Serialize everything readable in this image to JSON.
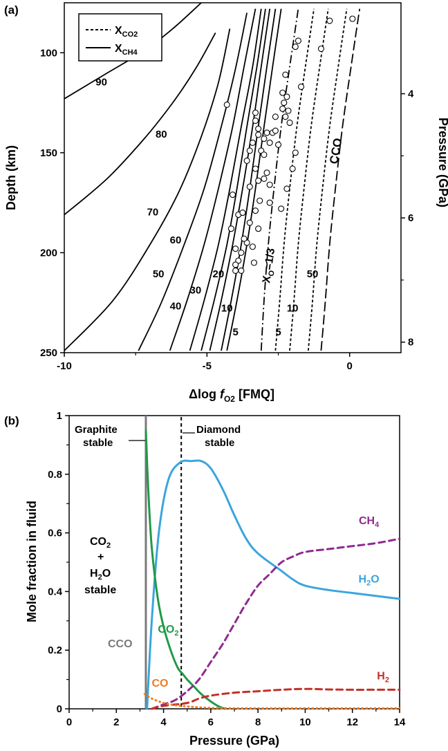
{
  "panel_a": {
    "label": "(a)",
    "xlabel_prefix": "Δlog ",
    "xlabel_f": "f",
    "xlabel_sub": "O2",
    "xlabel_suffix": " [FMQ]",
    "ylabel_left": "Depth (km)",
    "ylabel_right": "Pressure (GPa)",
    "legend": [
      {
        "text": "X",
        "sub": "CO2",
        "style": "dashed"
      },
      {
        "text": "X",
        "sub": "CH4",
        "style": "solid"
      }
    ],
    "xticks": [
      "-10",
      "-5",
      "0"
    ],
    "yticks_left": [
      "100",
      "150",
      "200",
      "250"
    ],
    "yticks_right": [
      "4",
      "6",
      "8"
    ],
    "xo_label": "X",
    "xo_sub": "O",
    "xo_suffix": "=1/3",
    "cco_label": "CCO"
  },
  "panel_b": {
    "label": "(b)",
    "xlabel": "Pressure (GPa)",
    "ylabel": "Mole fraction in fluid",
    "xticks": [
      "0",
      "2",
      "4",
      "6",
      "8",
      "10",
      "12",
      "14"
    ],
    "yticks": [
      "0",
      "0.2",
      "0.4",
      "0.6",
      "0.8",
      "1"
    ],
    "graphite_label_1": "Graphite",
    "graphite_label_2": "stable",
    "diamond_label_1": "Diamond",
    "diamond_label_2": "stable",
    "stable_co2": "CO",
    "stable_plus": "+",
    "stable_h2o": "H",
    "stable_h2o_b": "O",
    "stable_word": "stable",
    "cco_label": "CCO",
    "sub2": "2",
    "sub4": "4"
  },
  "chart_data": [
    {
      "type": "line",
      "panel": "a",
      "xlabel": "Δlog fO2 [FMQ]",
      "ylabel": "Depth (km)",
      "y2label": "Pressure (GPa)",
      "xlim": [
        -10,
        1.8
      ],
      "ylim": [
        250,
        75
      ],
      "y2_ticks": [
        4,
        6,
        8
      ],
      "legend": [
        "XCO2 (dashed)",
        "XCH4 (solid)"
      ],
      "legend_position": "top-left",
      "series": [
        {
          "name": "90",
          "style": "solid",
          "x": [
            -10,
            -8.6,
            -7.2,
            -6.2,
            -5.2
          ],
          "y": [
            123,
            111,
            99,
            88,
            75
          ]
        },
        {
          "name": "80",
          "style": "solid",
          "x": [
            -10,
            -8.5,
            -7.2,
            -6.2,
            -5.4,
            -4.7
          ],
          "y": [
            181,
            163,
            143,
            125,
            108,
            90
          ]
        },
        {
          "name": "70",
          "style": "solid",
          "x": [
            -10,
            -8.3,
            -7.0,
            -6.0,
            -5.2,
            -4.6,
            -4.2
          ],
          "y": [
            249,
            224,
            196,
            170,
            142,
            115,
            88
          ]
        },
        {
          "name": "60",
          "style": "solid",
          "x": [
            -7.4,
            -6.6,
            -5.8,
            -5.1,
            -4.5,
            -4.0,
            -3.6
          ],
          "y": [
            249,
            225,
            196,
            168,
            137,
            108,
            80
          ]
        },
        {
          "name": "50",
          "style": "solid",
          "x": [
            -6.3,
            -5.7,
            -5.1,
            -4.6,
            -4.1,
            -3.7,
            -3.3
          ],
          "y": [
            249,
            224,
            196,
            168,
            137,
            107,
            78
          ]
        },
        {
          "name": "40",
          "style": "solid",
          "x": [
            -5.6,
            -5.1,
            -4.6,
            -4.2,
            -3.8,
            -3.4,
            -3.1
          ],
          "y": [
            249,
            224,
            196,
            168,
            137,
            107,
            78
          ]
        },
        {
          "name": "30",
          "style": "solid",
          "x": [
            -5.2,
            -4.75,
            -4.3,
            -3.95,
            -3.6,
            -3.25,
            -2.95
          ],
          "y": [
            249,
            224,
            196,
            168,
            137,
            107,
            78
          ]
        },
        {
          "name": "20",
          "style": "solid",
          "x": [
            -4.9,
            -4.5,
            -4.1,
            -3.75,
            -3.4,
            -3.1,
            -2.8
          ],
          "y": [
            249,
            224,
            196,
            168,
            137,
            107,
            78
          ]
        },
        {
          "name": "10",
          "style": "solid",
          "x": [
            -4.5,
            -4.15,
            -3.8,
            -3.5,
            -3.2,
            -2.9,
            -2.6
          ],
          "y": [
            249,
            224,
            196,
            168,
            137,
            107,
            78
          ]
        },
        {
          "name": "5",
          "style": "solid",
          "x": [
            -4.3,
            -3.95,
            -3.6,
            -3.3,
            -3.0,
            -2.7,
            -2.4
          ],
          "y": [
            249,
            224,
            196,
            168,
            137,
            107,
            78
          ]
        },
        {
          "name": "XO=1/3",
          "style": "dashdot",
          "x": [
            -3.1,
            -3.0,
            -2.85,
            -2.65,
            -2.4,
            -2.1,
            -1.8
          ],
          "y": [
            249,
            224,
            196,
            168,
            137,
            107,
            78
          ]
        },
        {
          "name": "5",
          "style": "dashed",
          "x": [
            -2.6,
            -2.45,
            -2.3,
            -2.1,
            -1.85,
            -1.55,
            -1.25
          ],
          "y": [
            249,
            224,
            196,
            168,
            137,
            107,
            78
          ]
        },
        {
          "name": "10",
          "style": "dashed",
          "x": [
            -2.1,
            -1.95,
            -1.8,
            -1.6,
            -1.35,
            -1.05,
            -0.75
          ],
          "y": [
            249,
            224,
            196,
            168,
            137,
            107,
            78
          ]
        },
        {
          "name": "50",
          "style": "dashed",
          "x": [
            -1.45,
            -1.3,
            -1.15,
            -0.95,
            -0.7,
            -0.4,
            -0.1
          ],
          "y": [
            249,
            224,
            196,
            168,
            137,
            107,
            78
          ]
        },
        {
          "name": "CCO",
          "style": "longdash",
          "x": [
            -1.0,
            -0.85,
            -0.7,
            -0.5,
            -0.25,
            0.05,
            0.35
          ],
          "y": [
            249,
            224,
            196,
            168,
            137,
            107,
            78
          ]
        }
      ],
      "curve_labels": [
        {
          "text": "90",
          "x": -8.7,
          "y": 115
        },
        {
          "text": "80",
          "x": -6.6,
          "y": 141
        },
        {
          "text": "70",
          "x": -6.9,
          "y": 180
        },
        {
          "text": "60",
          "x": -6.1,
          "y": 194
        },
        {
          "text": "50",
          "x": -6.7,
          "y": 211
        },
        {
          "text": "40",
          "x": -6.1,
          "y": 227
        },
        {
          "text": "30",
          "x": -5.4,
          "y": 219
        },
        {
          "text": "20",
          "x": -4.6,
          "y": 211
        },
        {
          "text": "10",
          "x": -4.3,
          "y": 228
        },
        {
          "text": "5",
          "x": -4.0,
          "y": 240
        },
        {
          "text": "5",
          "x": -2.5,
          "y": 240
        },
        {
          "text": "10",
          "x": -2.0,
          "y": 228
        },
        {
          "text": "50",
          "x": -1.3,
          "y": 211
        }
      ],
      "scatter": [
        [
          -4.3,
          126
        ],
        [
          -3.6,
          154
        ],
        [
          -3.5,
          167
        ],
        [
          -4.1,
          171
        ],
        [
          -3.9,
          181
        ],
        [
          -4.15,
          188
        ],
        [
          -3.75,
          180
        ],
        [
          -3.3,
          130
        ],
        [
          -3.3,
          134
        ],
        [
          -3.2,
          138
        ],
        [
          -3.4,
          145
        ],
        [
          -3.5,
          149
        ],
        [
          -3.0,
          143
        ],
        [
          -2.9,
          140
        ],
        [
          -3.2,
          141
        ],
        [
          -3.1,
          149
        ],
        [
          -3.0,
          151
        ],
        [
          -2.8,
          145
        ],
        [
          -2.7,
          140
        ],
        [
          -2.6,
          139
        ],
        [
          -2.5,
          146
        ],
        [
          -2.6,
          132
        ],
        [
          -2.35,
          128
        ],
        [
          -2.25,
          132
        ],
        [
          -2.15,
          129
        ],
        [
          -2.3,
          125
        ],
        [
          -2.2,
          122
        ],
        [
          -2.25,
          111
        ],
        [
          -2.35,
          120
        ],
        [
          -2.1,
          135
        ],
        [
          -3.3,
          158
        ],
        [
          -3.2,
          164
        ],
        [
          -3.0,
          163
        ],
        [
          -2.8,
          166
        ],
        [
          -2.9,
          160
        ],
        [
          -3.15,
          174
        ],
        [
          -3.3,
          179
        ],
        [
          -3.2,
          188
        ],
        [
          -3.5,
          185
        ],
        [
          -3.6,
          195
        ],
        [
          -3.7,
          193
        ],
        [
          -3.8,
          200
        ],
        [
          -3.4,
          197
        ],
        [
          -3.35,
          205
        ],
        [
          -3.9,
          204
        ],
        [
          -4.0,
          198
        ],
        [
          -4.0,
          206
        ],
        [
          -4.0,
          209
        ],
        [
          -3.8,
          209
        ],
        [
          -2.8,
          175
        ],
        [
          -2.4,
          178
        ],
        [
          -2.2,
          168
        ],
        [
          -2.0,
          158
        ],
        [
          -1.9,
          150
        ],
        [
          -1.7,
          117
        ],
        [
          -1.9,
          97
        ],
        [
          -1.8,
          94
        ],
        [
          -1.0,
          98
        ],
        [
          -0.7,
          84
        ],
        [
          0.1,
          83
        ]
      ]
    },
    {
      "type": "line",
      "panel": "b",
      "xlabel": "Pressure (GPa)",
      "ylabel": "Mole fraction in fluid",
      "xlim": [
        0,
        14
      ],
      "ylim": [
        0,
        1
      ],
      "vertical_lines": [
        {
          "name": "CCO",
          "x": 3.25,
          "color": "#7a7a7a",
          "style": "solid"
        },
        {
          "name": "graphite-diamond",
          "x": 4.75,
          "color": "#000000",
          "style": "dashed"
        }
      ],
      "series": [
        {
          "name": "H2O",
          "color": "#3aa5dc",
          "style": "solid",
          "x": [
            3.3,
            3.5,
            3.8,
            4.2,
            4.7,
            5.2,
            5.6,
            6.0,
            6.5,
            7.0,
            7.5,
            8.0,
            9.0,
            9.5,
            10.0,
            11.0,
            12.0,
            13.0,
            14.0
          ],
          "y": [
            0.0,
            0.3,
            0.6,
            0.78,
            0.84,
            0.845,
            0.845,
            0.82,
            0.75,
            0.66,
            0.58,
            0.53,
            0.47,
            0.44,
            0.42,
            0.405,
            0.395,
            0.385,
            0.375
          ]
        },
        {
          "name": "CO2",
          "color": "#1f9a48",
          "style": "solid",
          "x": [
            3.25,
            3.35,
            3.5,
            3.75,
            4.0,
            4.3,
            4.6,
            4.8,
            5.0,
            5.3,
            5.6,
            6.0,
            6.3,
            6.6
          ],
          "y": [
            0.95,
            0.75,
            0.55,
            0.38,
            0.28,
            0.2,
            0.14,
            0.12,
            0.1,
            0.075,
            0.05,
            0.025,
            0.01,
            0.0
          ]
        },
        {
          "name": "CH4",
          "color": "#90298f",
          "style": "dashed",
          "x": [
            3.5,
            4.0,
            4.5,
            5.0,
            5.5,
            6.0,
            6.5,
            7.0,
            7.5,
            8.0,
            8.5,
            9.0,
            9.5,
            10.0,
            11.0,
            12.0,
            13.0,
            14.0
          ],
          "y": [
            0.0,
            0.015,
            0.03,
            0.06,
            0.1,
            0.16,
            0.22,
            0.29,
            0.36,
            0.42,
            0.46,
            0.5,
            0.52,
            0.535,
            0.545,
            0.555,
            0.565,
            0.58
          ]
        },
        {
          "name": "H2",
          "color": "#c43027",
          "style": "dashed",
          "x": [
            3.5,
            4.0,
            5.0,
            5.5,
            6.0,
            7.0,
            8.0,
            9.0,
            10.0,
            11.0,
            12.0,
            13.0,
            14.0
          ],
          "y": [
            0.0,
            0.01,
            0.02,
            0.035,
            0.045,
            0.055,
            0.06,
            0.065,
            0.068,
            0.066,
            0.065,
            0.065,
            0.065
          ]
        },
        {
          "name": "CO",
          "color": "#f07b22",
          "style": "dotted",
          "x": [
            3.2,
            3.5,
            4.0,
            4.5,
            5.0,
            5.5,
            6.0,
            7.0,
            8.0,
            10.0,
            12.0,
            14.0
          ],
          "y": [
            0.05,
            0.035,
            0.02,
            0.012,
            0.008,
            0.005,
            0.003,
            0.002,
            0.002,
            0.002,
            0.002,
            0.002
          ]
        }
      ],
      "series_labels": [
        {
          "text": "CO2",
          "color": "#1f9a48",
          "x": 4.2,
          "y": 0.26
        },
        {
          "text": "CH4",
          "color": "#90298f",
          "x": 12.7,
          "y": 0.63
        },
        {
          "text": "H2O",
          "color": "#3aa5dc",
          "x": 12.7,
          "y": 0.43
        },
        {
          "text": "H2",
          "color": "#c43027",
          "x": 13.3,
          "y": 0.1
        },
        {
          "text": "CO",
          "color": "#f07b22",
          "x": 3.85,
          "y": 0.075
        }
      ]
    }
  ]
}
